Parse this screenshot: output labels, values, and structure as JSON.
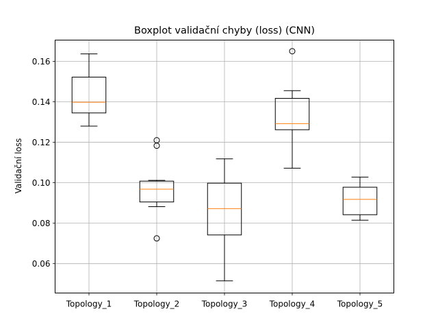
{
  "chart_data": {
    "type": "boxplot",
    "title": "Boxplot validační chyby (loss) (CNN)",
    "xlabel": "",
    "ylabel": "Validační loss",
    "ylim": [
      0.0455,
      0.1705
    ],
    "yticks": [
      0.06,
      0.08,
      0.1,
      0.12,
      0.14,
      0.16
    ],
    "ytick_labels": [
      "0.06",
      "0.08",
      "0.10",
      "0.12",
      "0.14",
      "0.16"
    ],
    "grid": true,
    "categories": [
      "Topology_1",
      "Topology_2",
      "Topology_3",
      "Topology_4",
      "Topology_5"
    ],
    "boxes": [
      {
        "whisker_low": 0.128,
        "q1": 0.1345,
        "median": 0.1398,
        "q3": 0.1522,
        "whisker_high": 0.1637,
        "outliers": []
      },
      {
        "whisker_low": 0.0882,
        "q1": 0.0905,
        "median": 0.0968,
        "q3": 0.1008,
        "whisker_high": 0.1012,
        "outliers": [
          0.121,
          0.1183,
          0.0725
        ]
      },
      {
        "whisker_low": 0.0515,
        "q1": 0.0742,
        "median": 0.0872,
        "q3": 0.0998,
        "whisker_high": 0.1118,
        "outliers": []
      },
      {
        "whisker_low": 0.1072,
        "q1": 0.1262,
        "median": 0.1292,
        "q3": 0.1417,
        "whisker_high": 0.1455,
        "outliers": [
          0.165
        ]
      },
      {
        "whisker_low": 0.0815,
        "q1": 0.0842,
        "median": 0.0918,
        "q3": 0.0978,
        "whisker_high": 0.1028,
        "outliers": []
      }
    ],
    "colors": {
      "box": "#000000",
      "median": "#ff7f0e",
      "grid": "#b0b0b0"
    }
  }
}
